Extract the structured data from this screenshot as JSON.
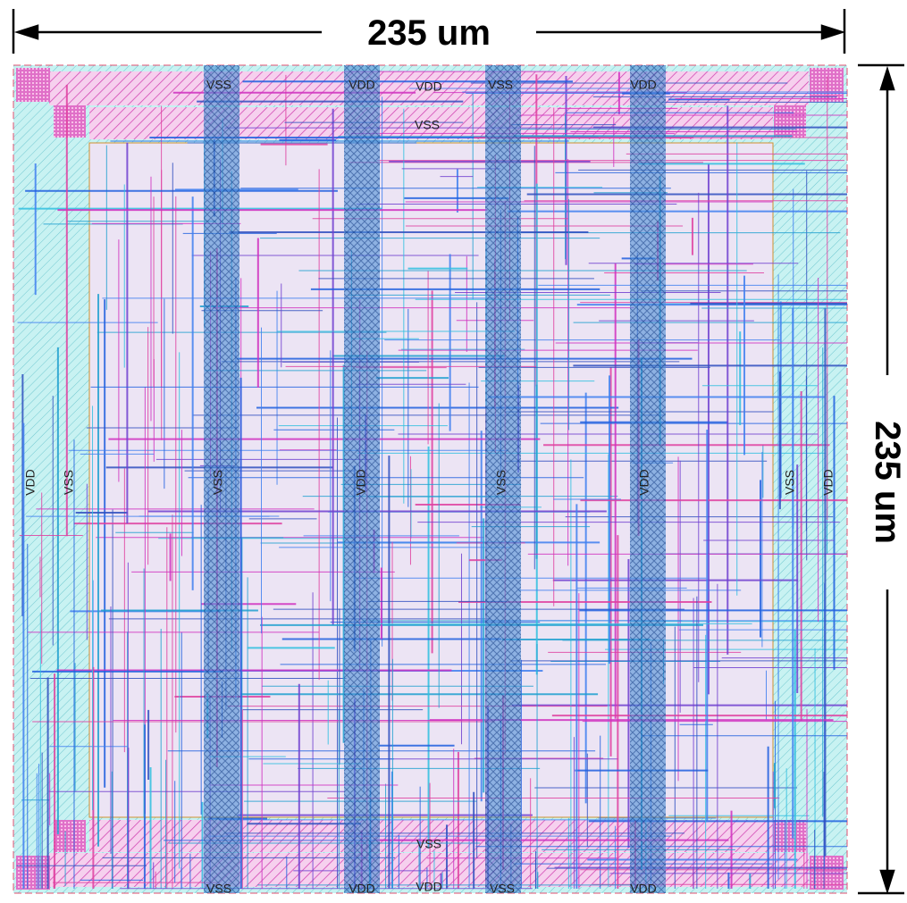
{
  "dimensions": {
    "width": "235 um",
    "height": "235 um"
  },
  "labels": [
    "VSS",
    "VDD",
    "VDD",
    "VSS",
    "VDD",
    "VSS",
    "VDD",
    "VSS",
    "VSS",
    "VDD",
    "VSS",
    "VDD",
    "VSS",
    "VDD",
    "VSS",
    "VSS",
    "VDD",
    "VDD",
    "VSS",
    "VDD"
  ]
}
